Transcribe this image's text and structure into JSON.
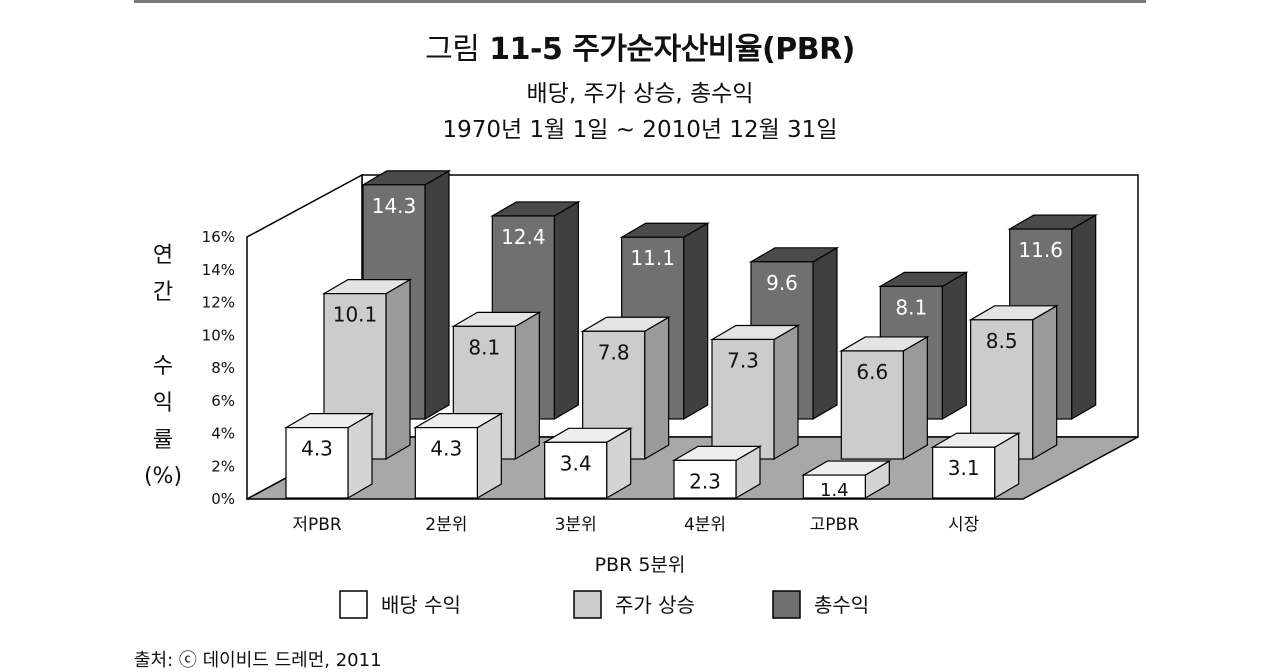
{
  "figure": {
    "title_prefix": "그림",
    "title_main": "11-5  주가순자산비율(PBR)",
    "subtitle_line1": "배당, 주가 상승, 총수익",
    "subtitle_line2": "1970년 1월 1일 ~ 2010년 12월 31일",
    "source": "출처: ⓒ 데이비드 드레먼, 2011"
  },
  "chart_data": {
    "type": "bar",
    "style": "3d-clustered",
    "categories": [
      "저PBR",
      "2분위",
      "3분위",
      "4분위",
      "고PBR",
      "시장"
    ],
    "series": [
      {
        "name": "배당 수익",
        "values": [
          4.3,
          4.3,
          3.4,
          2.3,
          1.4,
          3.1
        ],
        "color": "#ffffff"
      },
      {
        "name": "주가 상승",
        "values": [
          10.1,
          8.1,
          7.8,
          7.3,
          6.6,
          8.5
        ],
        "color": "#cccccc"
      },
      {
        "name": "총수익",
        "values": [
          14.3,
          12.4,
          11.1,
          9.6,
          8.1,
          11.6
        ],
        "color": "#707070"
      }
    ],
    "xlabel": "PBR 5분위",
    "ylabel_chars": [
      "연",
      "간",
      "수",
      "익",
      "률",
      "(%)"
    ],
    "ylim": [
      0,
      16
    ],
    "yticks": [
      0,
      2,
      4,
      6,
      8,
      10,
      12,
      14,
      16
    ],
    "ytick_labels": [
      "0%",
      "2%",
      "4%",
      "6%",
      "8%",
      "10%",
      "12%",
      "14%",
      "16%"
    ],
    "legend_position": "bottom",
    "grid": false
  }
}
